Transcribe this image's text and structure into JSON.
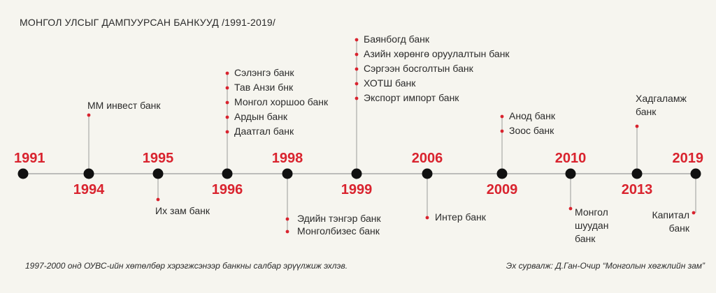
{
  "title": "МОНГОЛ УЛСЫГ ДАМПУУРСАН БАНКУУД /1991-2019/",
  "footnote": "1997-2000 онд ОУВС-ийн хөтөлбөр хэрэгжсэнээр банкны салбар эрүүлжиж эхлэв.",
  "source": "Эх сурвалж: Д.Ган-Очир “Монголын хөгжлийн зам”",
  "colors": {
    "accent": "#d9232e",
    "line": "#9a9a9a",
    "node": "#111111",
    "text": "#2a2a2a"
  },
  "events": [
    {
      "year": "1991",
      "labelPos": "above",
      "banks": []
    },
    {
      "year": "1994",
      "labelPos": "below",
      "banksSide": "up",
      "banks": [
        "ММ инвест банк"
      ]
    },
    {
      "year": "1995",
      "labelPos": "above",
      "banksSide": "down",
      "banks": [
        "Их зам банк"
      ]
    },
    {
      "year": "1996",
      "labelPos": "below",
      "banksSide": "up",
      "banks": [
        "Сэлэнгэ банк",
        "Тав Анзи бнк",
        "Монгол хоршоо банк",
        "Ардын банк",
        "Даатгал банк"
      ]
    },
    {
      "year": "1998",
      "labelPos": "above",
      "banksSide": "down",
      "banks": [
        "Эдийн тэнгэр банк",
        "Монголбизес банк"
      ]
    },
    {
      "year": "1999",
      "labelPos": "below",
      "banksSide": "up",
      "banks": [
        "Баянбогд банк",
        "Азийн хөрөнгө оруулалтын банк",
        "Сэргээн босголтын банк",
        "ХОТШ банк",
        "Экспорт импорт банк"
      ]
    },
    {
      "year": "2006",
      "labelPos": "above",
      "banksSide": "down",
      "banks": [
        "Интер банк"
      ]
    },
    {
      "year": "2009",
      "labelPos": "below",
      "banksSide": "up",
      "banks": [
        "Анод банк",
        "Зоос банк"
      ]
    },
    {
      "year": "2010",
      "labelPos": "above",
      "banksSide": "down",
      "banks": [
        "Монгол шуудан банк"
      ]
    },
    {
      "year": "2013",
      "labelPos": "below",
      "banksSide": "up",
      "banks": [
        "Хадгаламж банк"
      ]
    },
    {
      "year": "2019",
      "labelPos": "above",
      "banksSide": "down",
      "banks": [
        "Капитал банк"
      ]
    }
  ]
}
